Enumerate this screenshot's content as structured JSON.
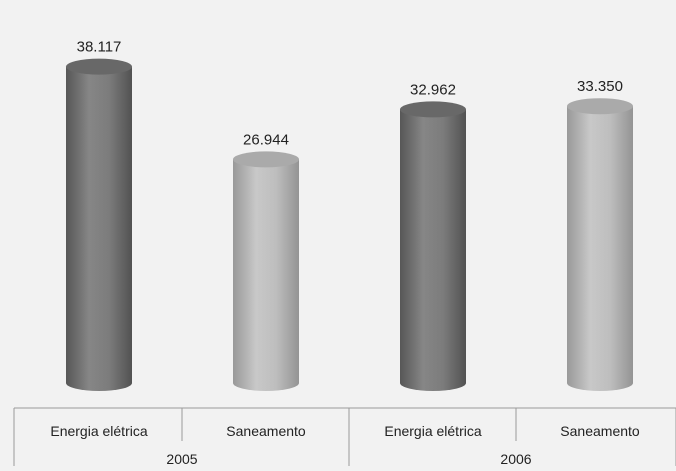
{
  "chart_data": {
    "type": "bar",
    "bar_style": "cylinder",
    "groups": [
      "2005",
      "2006"
    ],
    "categories": [
      "Energia elétrica",
      "Saneamento",
      "Energia elétrica",
      "Saneamento"
    ],
    "category_group": [
      "2005",
      "2005",
      "2006",
      "2006"
    ],
    "values": [
      38117,
      26944,
      32962,
      33350
    ],
    "value_labels": [
      "38.117",
      "26.944",
      "32.962",
      "33.350"
    ],
    "ylim": [
      0,
      40000
    ],
    "grid": false,
    "colors": {
      "Energia elétrica": "#7a7a7a",
      "Saneamento": "#bcbcbc",
      "background": "#f2f2f2"
    }
  }
}
